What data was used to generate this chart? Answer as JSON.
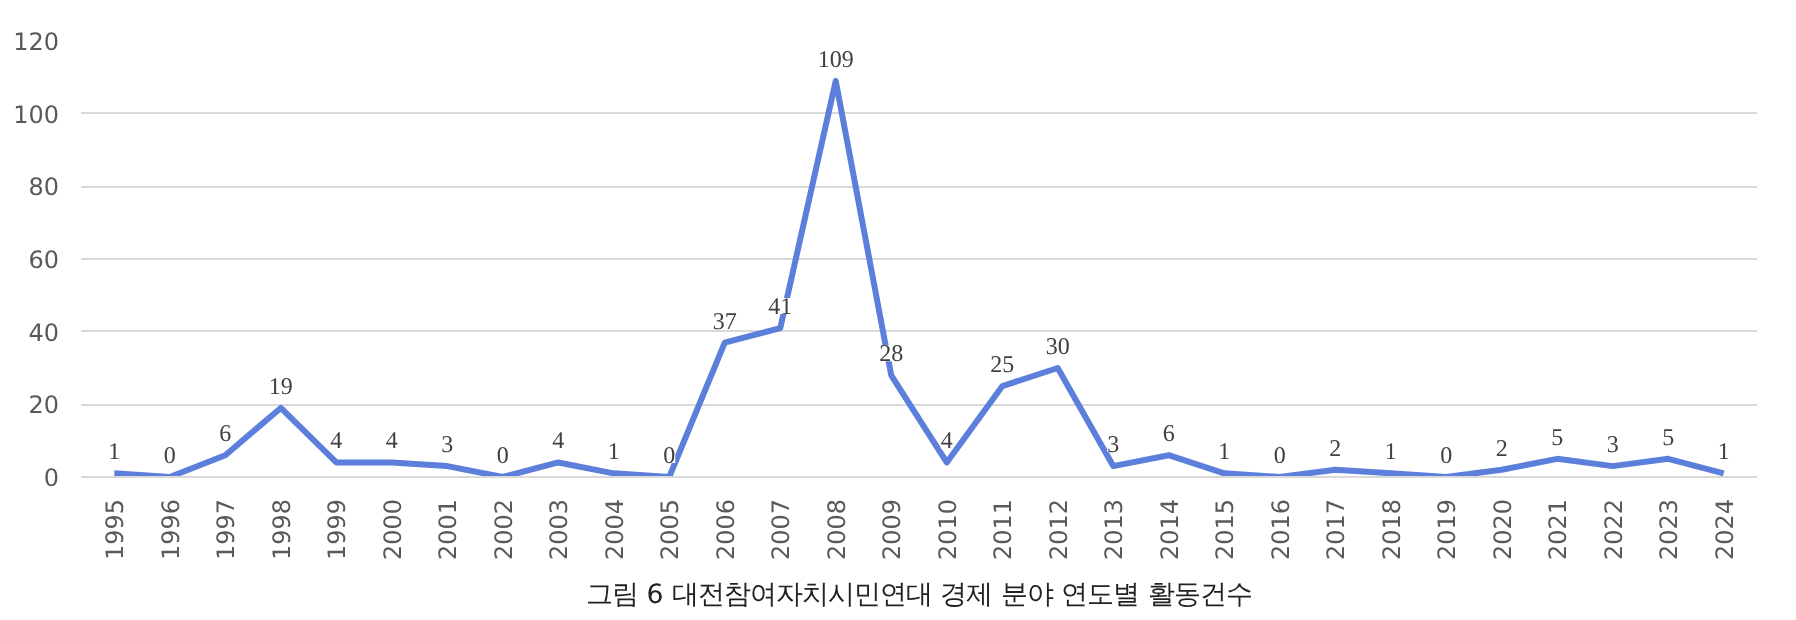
{
  "chart_data": {
    "type": "line",
    "categories": [
      "1995",
      "1996",
      "1997",
      "1998",
      "1999",
      "2000",
      "2001",
      "2002",
      "2003",
      "2004",
      "2005",
      "2006",
      "2007",
      "2008",
      "2009",
      "2010",
      "2011",
      "2012",
      "2013",
      "2014",
      "2015",
      "2016",
      "2017",
      "2018",
      "2019",
      "2020",
      "2021",
      "2022",
      "2023",
      "2024"
    ],
    "series": [
      {
        "color": "#5b7fdb",
        "values": [
          1,
          0,
          6,
          19,
          4,
          4,
          3,
          0,
          4,
          1,
          0,
          37,
          41,
          109,
          28,
          4,
          25,
          30,
          3,
          6,
          1,
          0,
          2,
          1,
          0,
          2,
          5,
          3,
          5,
          1
        ]
      }
    ],
    "ylim": [
      0,
      120
    ],
    "yticks": [
      0,
      20,
      40,
      60,
      80,
      100,
      120
    ],
    "grid": "y",
    "data_labels": true,
    "marker": "none",
    "line_style": "solid",
    "annotations": [
      "그림 6 대전참여자치시민연대 경제 분야 연도별 활동건수"
    ]
  }
}
